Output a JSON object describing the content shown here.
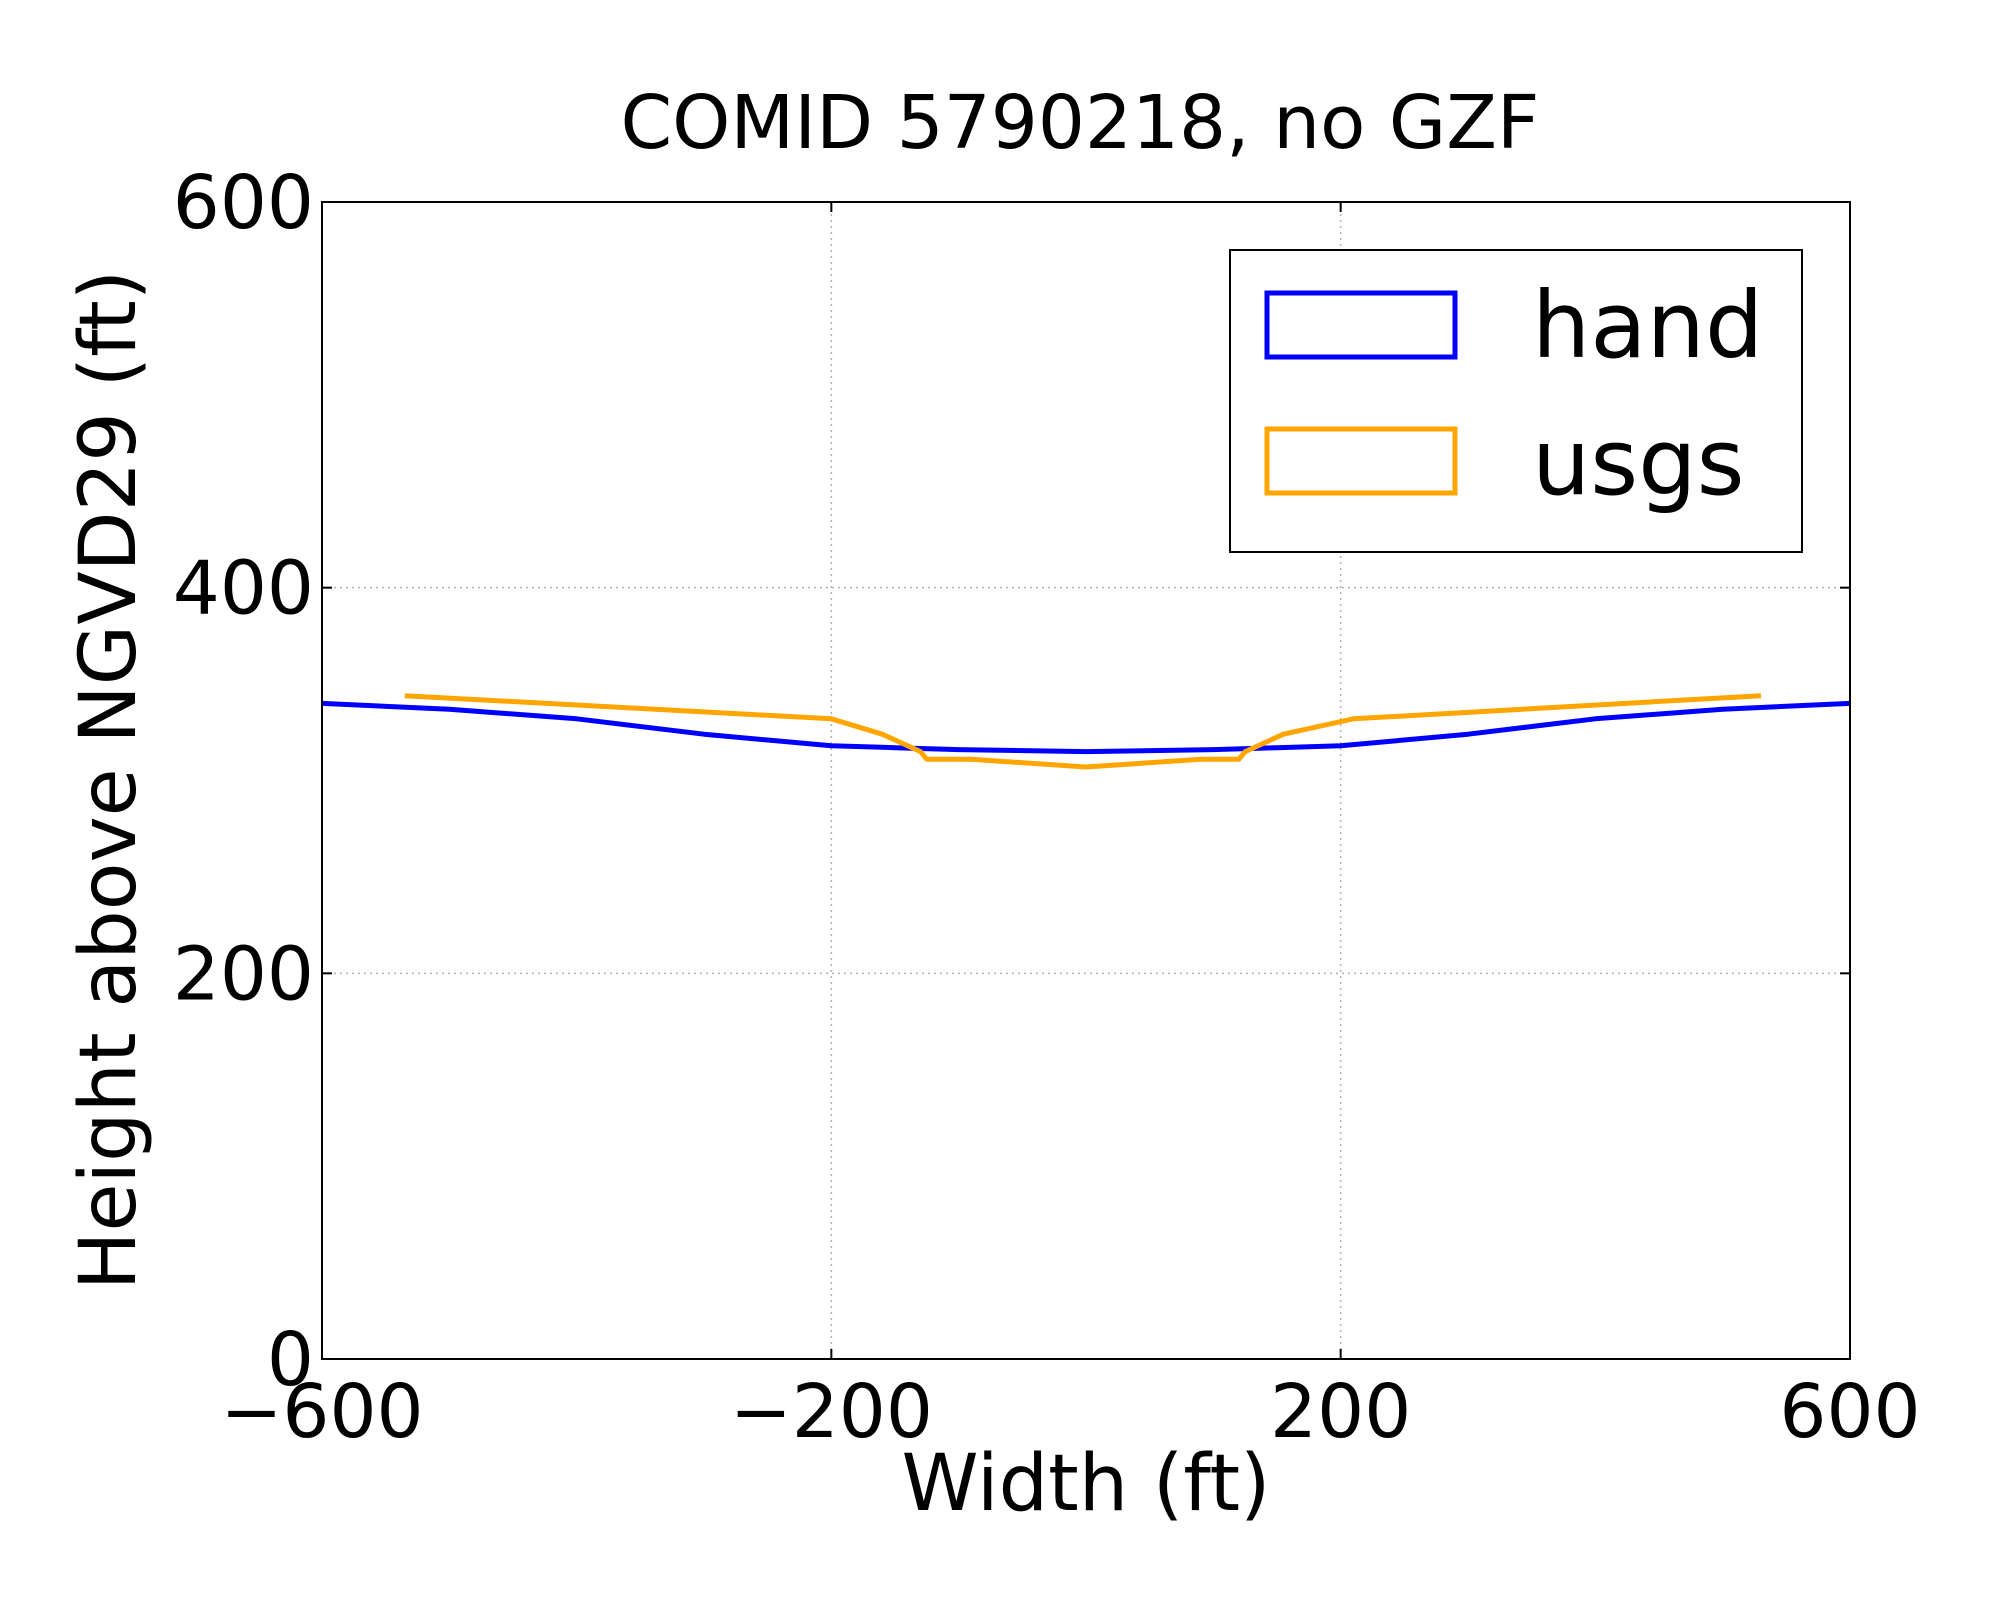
{
  "chart_data": {
    "type": "line",
    "title": "COMID 5790218, no GZF",
    "xlabel": "Width (ft)",
    "ylabel": "Height above NGVD29 (ft)",
    "xlim": [
      -600,
      600
    ],
    "ylim": [
      0,
      600
    ],
    "xticks": [
      -600,
      -200,
      200,
      600
    ],
    "xtick_labels": [
      "−600",
      "−200",
      "200",
      "600"
    ],
    "yticks": [
      0,
      200,
      400,
      600
    ],
    "ytick_labels": [
      "0",
      "200",
      "400",
      "600"
    ],
    "grid": true,
    "legend": {
      "placement": "top-right"
    },
    "series": [
      {
        "name": "hand",
        "color": "#0000ff",
        "x": [
          -600,
          -500,
          -400,
          -300,
          -200,
          -150,
          -100,
          0,
          100,
          150,
          200,
          300,
          400,
          500,
          600
        ],
        "y": [
          340,
          337,
          332,
          324,
          318,
          317,
          316,
          315,
          316,
          317,
          318,
          324,
          332,
          337,
          340
        ]
      },
      {
        "name": "usgs",
        "color": "#ffa500",
        "x": [
          -535,
          -200,
          -160,
          -130,
          -125,
          -90,
          0,
          90,
          120,
          125,
          155,
          210,
          530
        ],
        "y": [
          344,
          332,
          324,
          315,
          311,
          311,
          307,
          311,
          311,
          315,
          324,
          332,
          344
        ]
      }
    ]
  }
}
